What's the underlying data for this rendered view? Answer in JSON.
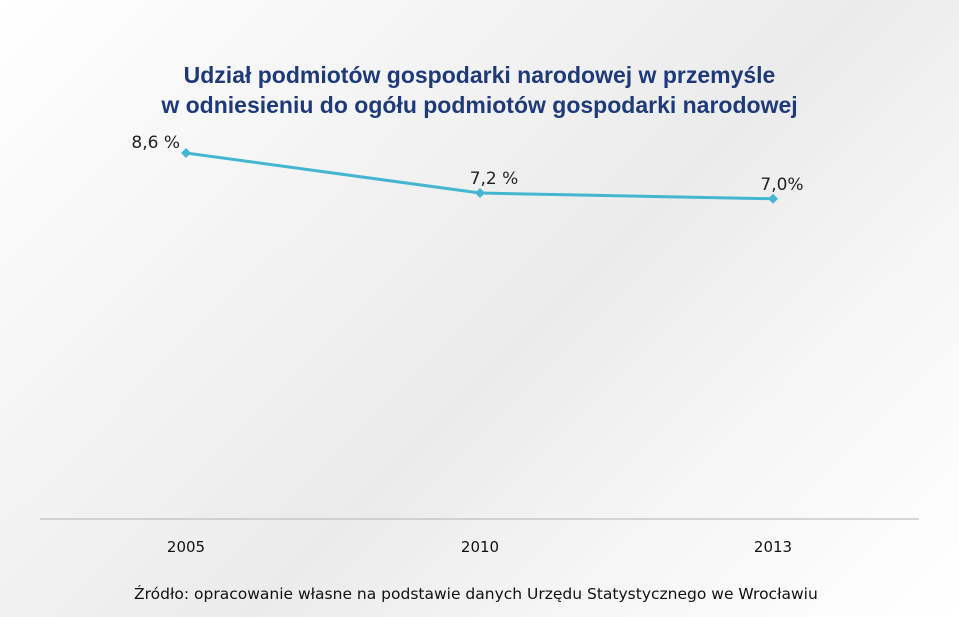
{
  "title": {
    "line1": "Udział podmiotów gospodarki narodowej w przemyśle",
    "line2": "w odniesieniu do ogółu podmiotów gospodarki narodowej"
  },
  "source": "Źródło: opracowanie własne na podstawie danych Urzędu Statystycznego we Wrocławiu",
  "colors": {
    "line": "#45b6d1",
    "title": "#1f3a7a",
    "axis": "#bfbfbf"
  },
  "chart_data": {
    "type": "line",
    "title": "Udział podmiotów gospodarki narodowej w przemyśle w odniesieniu do ogółu podmiotów gospodarki narodowej",
    "categories": [
      "2005",
      "2010",
      "2013"
    ],
    "series": [
      {
        "values": [
          8.6,
          7.2,
          7.0
        ],
        "labels": [
          "8,6 %",
          "7,2 %",
          "7,0%"
        ]
      }
    ],
    "ylim": [
      0,
      9
    ],
    "grid": false,
    "legend": "none"
  }
}
